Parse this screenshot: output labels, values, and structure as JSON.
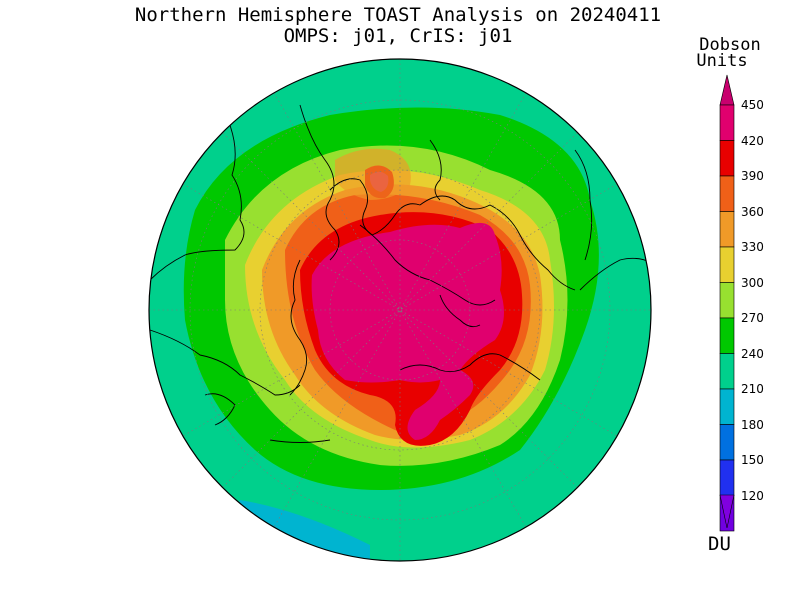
{
  "title": {
    "line1": "Northern Hemisphere TOAST Analysis on 20240411",
    "line2": "OMPS: j01, CrIS: j01"
  },
  "colorbar": {
    "header_line1": "Dobson",
    "header_line2": "Units",
    "unit_label": "DU",
    "levels": [
      {
        "value": "450",
        "color": "#e0006e"
      },
      {
        "value": "420",
        "color": "#e80000"
      },
      {
        "value": "390",
        "color": "#f06018"
      },
      {
        "value": "360",
        "color": "#f09a28"
      },
      {
        "value": "330",
        "color": "#e8d030"
      },
      {
        "value": "300",
        "color": "#98e030"
      },
      {
        "value": "270",
        "color": "#00c800"
      },
      {
        "value": "240",
        "color": "#00d08c"
      },
      {
        "value": "210",
        "color": "#00b4d0"
      },
      {
        "value": "180",
        "color": "#0070e0"
      },
      {
        "value": "150",
        "color": "#2030f0"
      },
      {
        "value": "120",
        "color": "#7000e0"
      }
    ],
    "top_arrow_color": "#c8006e",
    "bottom_arrow_color": "#8000e0"
  }
}
